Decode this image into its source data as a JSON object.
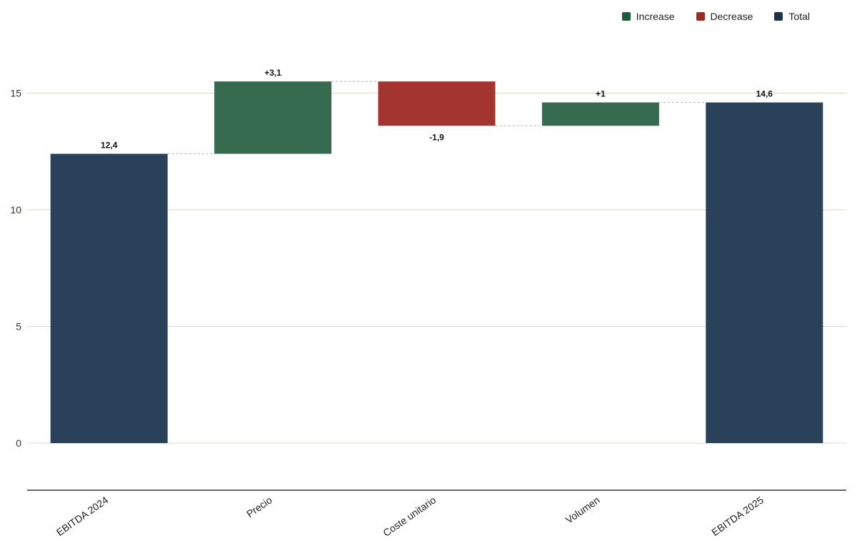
{
  "legend": {
    "increase_label": "Increase",
    "decrease_label": "Decrease",
    "total_label": "Total"
  },
  "colors": {
    "increase": "#376b50",
    "decrease": "#a23530",
    "total": "#29425a",
    "grid": "#d8d8c4",
    "baseline": "#333333",
    "connector": "#b0b0b0"
  },
  "chart_data": {
    "type": "waterfall",
    "categories": [
      "EBITDA 2024",
      "Precio",
      "Coste unitario",
      "Volumen",
      "EBITDA 2025"
    ],
    "values": [
      12.4,
      3.1,
      -1.9,
      1,
      14.6
    ],
    "kinds": [
      "total",
      "increase",
      "decrease",
      "increase",
      "total"
    ],
    "data_labels": [
      "12,4",
      "+3,1",
      "-1,9",
      "+1",
      "14,6"
    ],
    "y_ticks": [
      0,
      5,
      10,
      15
    ],
    "ylim": [
      -2,
      18
    ],
    "grid": true,
    "legend_position": "top-right"
  }
}
